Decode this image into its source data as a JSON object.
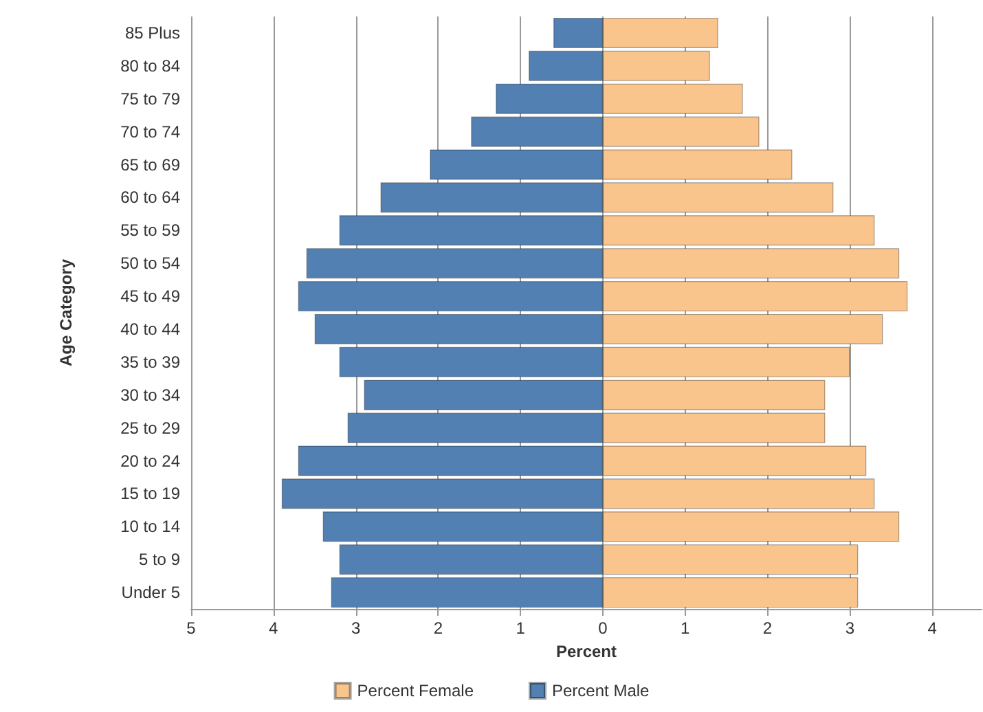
{
  "chart_data": {
    "type": "bar",
    "orientation": "horizontal",
    "xlabel": "Percent",
    "ylabel": "Age Category",
    "categories": [
      "85 Plus",
      "80 to 84",
      "75 to 79",
      "70 to 74",
      "65 to 69",
      "60 to 64",
      "55 to 59",
      "50 to 54",
      "45 to 49",
      "40 to 44",
      "35 to 39",
      "30 to 34",
      "25 to 29",
      "20 to 24",
      "15 to 19",
      "10 to 14",
      "5 to 9",
      "Under 5"
    ],
    "series": [
      {
        "name": "Percent Female",
        "color": "#fac48d",
        "values": [
          1.4,
          1.3,
          1.7,
          1.9,
          2.3,
          2.8,
          3.3,
          3.6,
          3.7,
          3.4,
          3.0,
          2.7,
          2.7,
          3.2,
          3.3,
          3.6,
          3.1,
          3.1
        ]
      },
      {
        "name": "Percent Male",
        "color": "#5380b3",
        "values": [
          -0.6,
          -0.9,
          -1.3,
          -1.6,
          -2.1,
          -2.7,
          -3.2,
          -3.6,
          -3.7,
          -3.5,
          -3.2,
          -2.9,
          -3.1,
          -3.7,
          -3.9,
          -3.4,
          -3.2,
          -3.3
        ]
      }
    ],
    "xlim": [
      -5,
      4.6
    ],
    "xticks": [
      {
        "value": -5,
        "label": "5"
      },
      {
        "value": -4,
        "label": "4"
      },
      {
        "value": -3,
        "label": "3"
      },
      {
        "value": -2,
        "label": "2"
      },
      {
        "value": -1,
        "label": "1"
      },
      0,
      1,
      2,
      3,
      4
    ],
    "grid": "x",
    "legend": "bottom",
    "stacked": true
  }
}
